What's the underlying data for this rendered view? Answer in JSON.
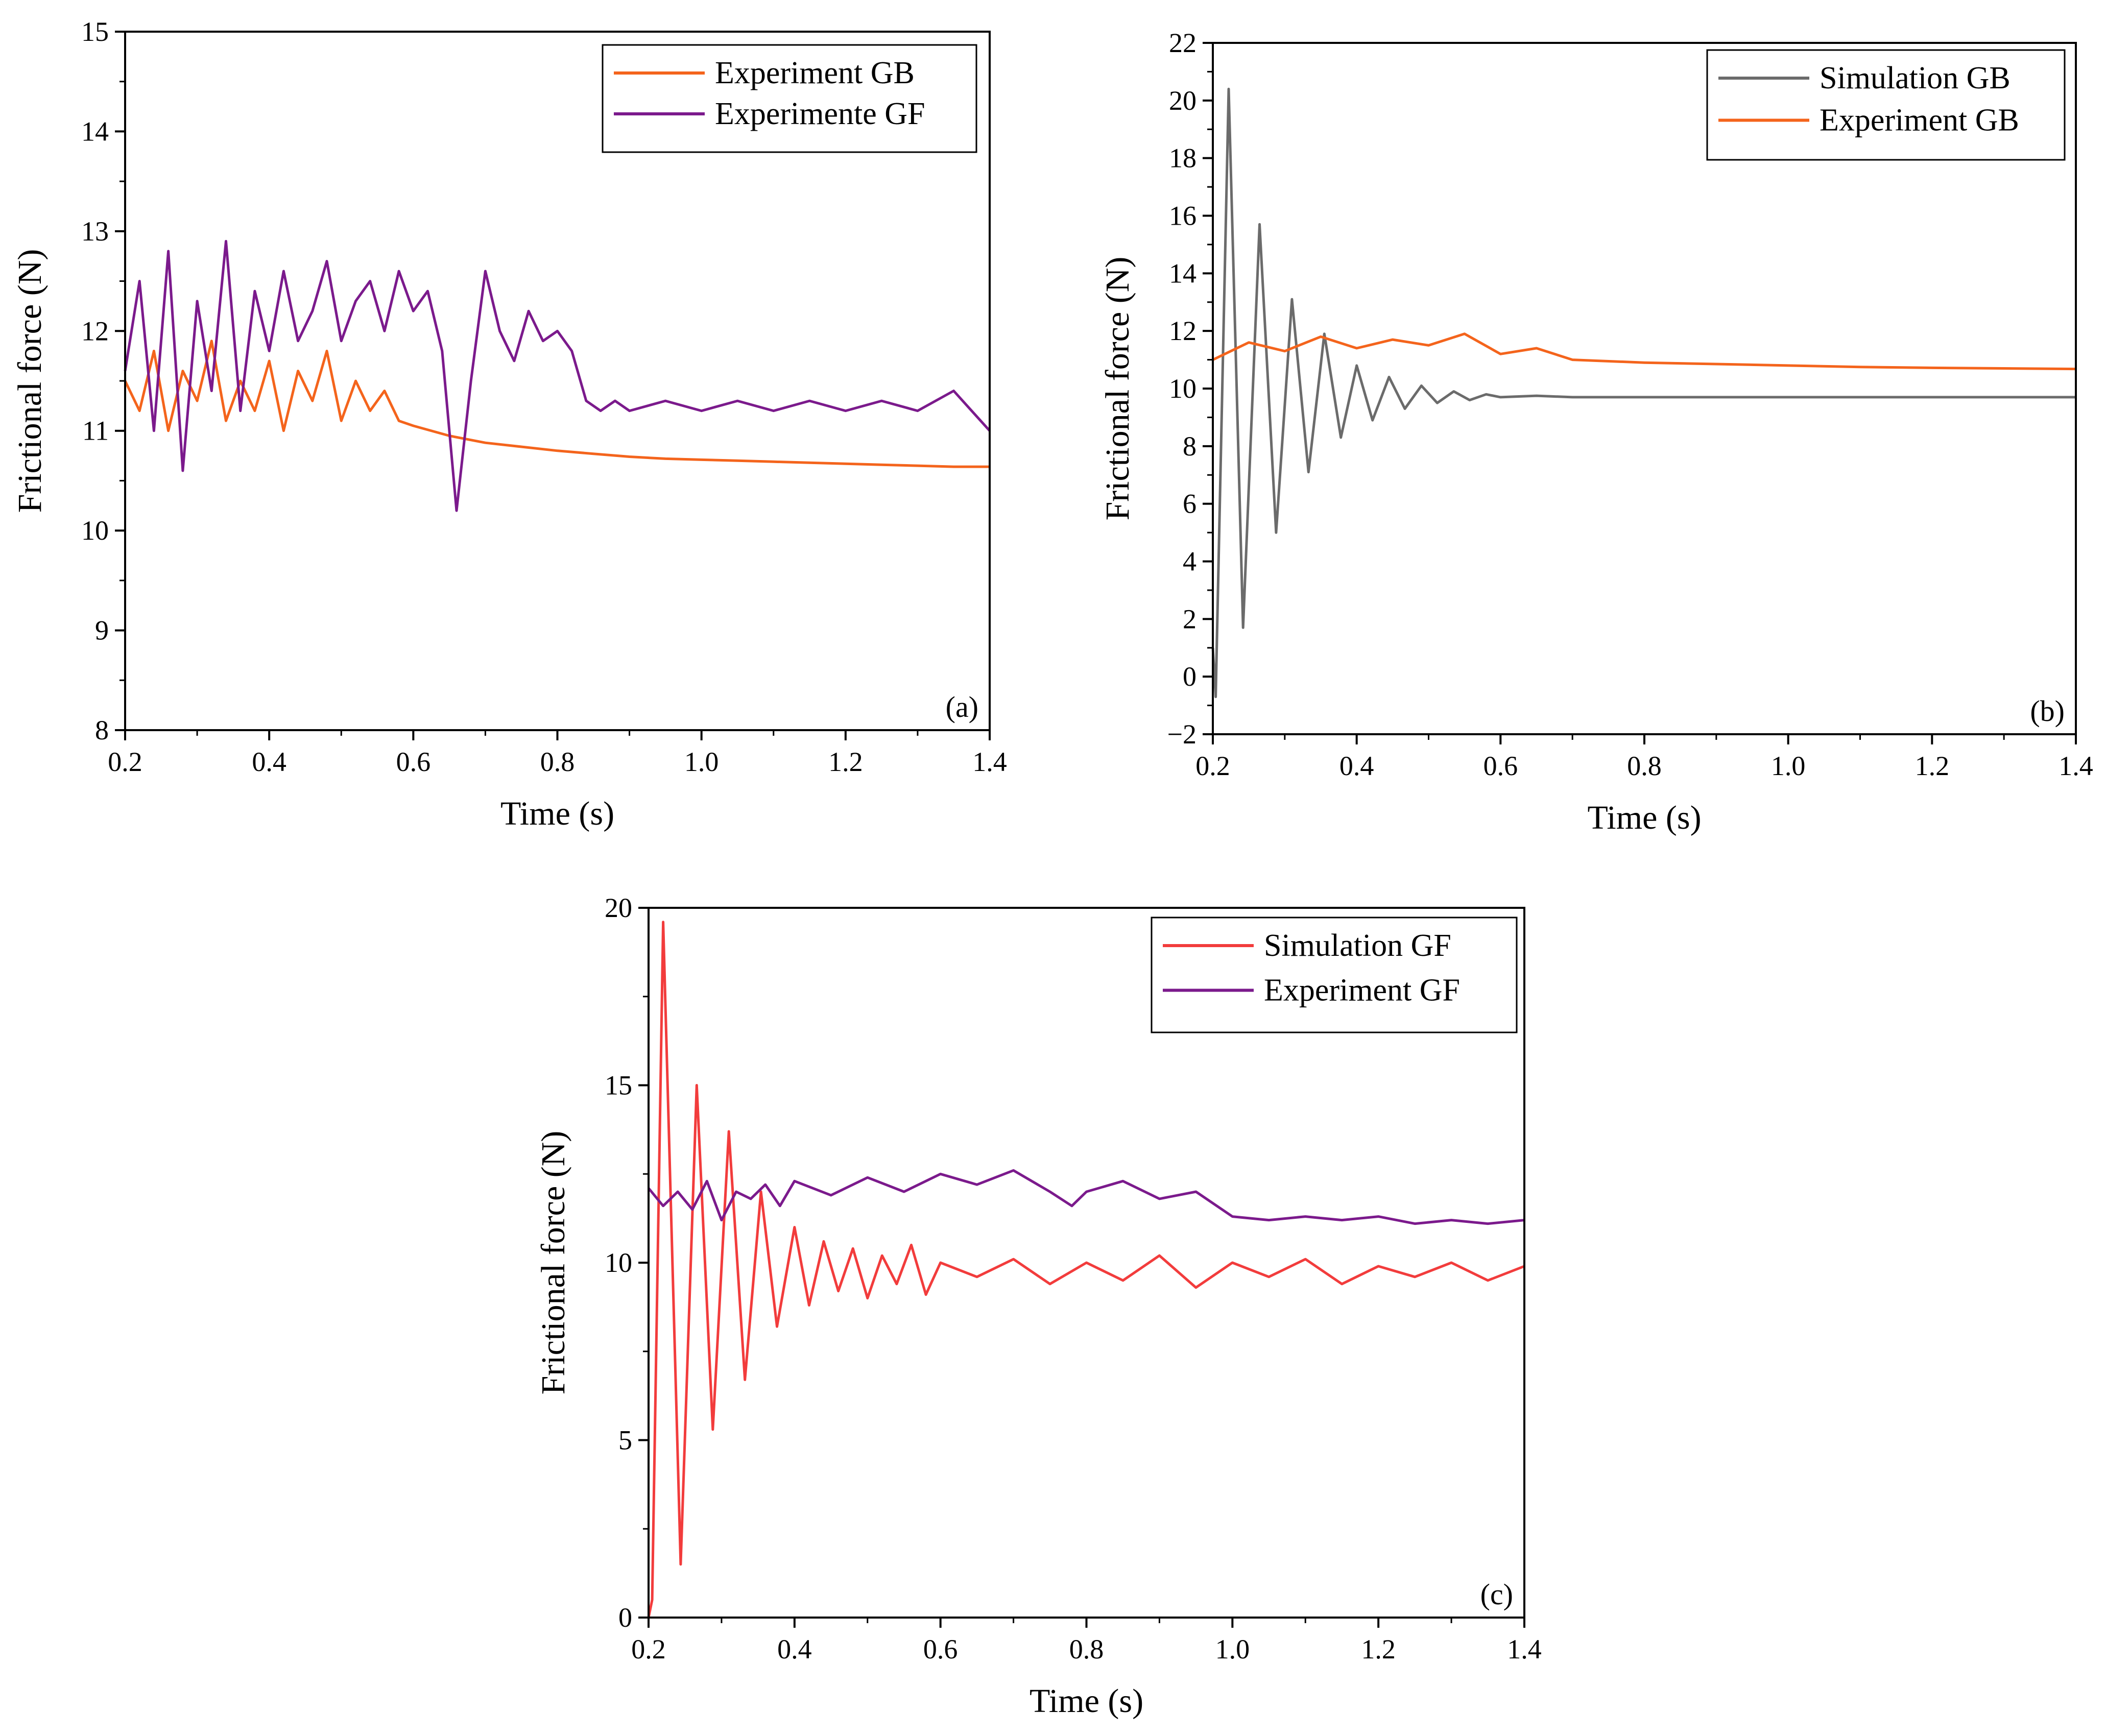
{
  "chart_data": [
    {
      "type": "line",
      "panel_label": "(a)",
      "xlabel": "Time (s)",
      "ylabel": "Frictional force (N)",
      "xlim": [
        0.2,
        1.4
      ],
      "ylim": [
        8,
        15
      ],
      "xticks": [
        "0.2",
        "0.4",
        "0.6",
        "0.8",
        "1.0",
        "1.2",
        "1.4"
      ],
      "yticks": [
        "8",
        "9",
        "10",
        "11",
        "12",
        "13",
        "14",
        "15"
      ],
      "legend_position": "top-right",
      "series": [
        {
          "name": "Experiment GB",
          "color": "#f4641c",
          "x": [
            0.2,
            0.22,
            0.24,
            0.26,
            0.28,
            0.3,
            0.32,
            0.34,
            0.36,
            0.38,
            0.4,
            0.42,
            0.44,
            0.46,
            0.48,
            0.5,
            0.52,
            0.54,
            0.56,
            0.58,
            0.6,
            0.65,
            0.7,
            0.75,
            0.8,
            0.85,
            0.9,
            0.95,
            1.0,
            1.05,
            1.1,
            1.15,
            1.2,
            1.25,
            1.3,
            1.35,
            1.4
          ],
          "values": [
            11.5,
            11.2,
            11.8,
            11.0,
            11.6,
            11.3,
            11.9,
            11.1,
            11.5,
            11.2,
            11.7,
            11.0,
            11.6,
            11.3,
            11.8,
            11.1,
            11.5,
            11.2,
            11.4,
            11.1,
            11.05,
            10.95,
            10.88,
            10.84,
            10.8,
            10.77,
            10.74,
            10.72,
            10.71,
            10.7,
            10.69,
            10.68,
            10.67,
            10.66,
            10.65,
            10.64,
            10.64
          ]
        },
        {
          "name": "Experimente GF",
          "color": "#7b1a8c",
          "x": [
            0.2,
            0.22,
            0.24,
            0.26,
            0.28,
            0.3,
            0.32,
            0.34,
            0.36,
            0.38,
            0.4,
            0.42,
            0.44,
            0.46,
            0.48,
            0.5,
            0.52,
            0.54,
            0.56,
            0.58,
            0.6,
            0.62,
            0.64,
            0.66,
            0.68,
            0.7,
            0.72,
            0.74,
            0.76,
            0.78,
            0.8,
            0.82,
            0.84,
            0.86,
            0.88,
            0.9,
            0.95,
            1.0,
            1.05,
            1.1,
            1.15,
            1.2,
            1.25,
            1.3,
            1.35,
            1.4
          ],
          "values": [
            11.6,
            12.5,
            11.0,
            12.8,
            10.6,
            12.3,
            11.4,
            12.9,
            11.2,
            12.4,
            11.8,
            12.6,
            11.9,
            12.2,
            12.7,
            11.9,
            12.3,
            12.5,
            12.0,
            12.6,
            12.2,
            12.4,
            11.8,
            10.2,
            11.5,
            12.6,
            12.0,
            11.7,
            12.2,
            11.9,
            12.0,
            11.8,
            11.3,
            11.2,
            11.3,
            11.2,
            11.3,
            11.2,
            11.3,
            11.2,
            11.3,
            11.2,
            11.3,
            11.2,
            11.4,
            11.0
          ]
        }
      ]
    },
    {
      "type": "line",
      "panel_label": "(b)",
      "xlabel": "Time (s)",
      "ylabel": "Frictional force (N)",
      "xlim": [
        0.2,
        1.4
      ],
      "ylim": [
        -2,
        22
      ],
      "xticks": [
        "0.2",
        "0.4",
        "0.6",
        "0.8",
        "1.0",
        "1.2",
        "1.4"
      ],
      "yticks": [
        "−2",
        "0",
        "2",
        "4",
        "6",
        "8",
        "10",
        "12",
        "14",
        "16",
        "18",
        "20",
        "22"
      ],
      "legend_position": "top-right",
      "series": [
        {
          "name": "Simulation GB",
          "color": "#6b6b6b",
          "x": [
            0.2,
            0.204,
            0.222,
            0.242,
            0.265,
            0.288,
            0.31,
            0.333,
            0.355,
            0.378,
            0.4,
            0.422,
            0.445,
            0.467,
            0.49,
            0.512,
            0.535,
            0.557,
            0.58,
            0.6,
            0.65,
            0.7,
            0.8,
            0.9,
            1.0,
            1.2,
            1.4
          ],
          "values": [
            1.0,
            -0.7,
            20.4,
            1.7,
            15.7,
            5.0,
            13.1,
            7.1,
            11.9,
            8.3,
            10.8,
            8.9,
            10.4,
            9.3,
            10.1,
            9.5,
            9.9,
            9.6,
            9.8,
            9.7,
            9.75,
            9.7,
            9.7,
            9.7,
            9.7,
            9.7,
            9.7
          ]
        },
        {
          "name": "Experiment GB",
          "color": "#f4641c",
          "x": [
            0.2,
            0.25,
            0.3,
            0.35,
            0.4,
            0.45,
            0.5,
            0.55,
            0.6,
            0.65,
            0.7,
            0.8,
            0.9,
            1.0,
            1.1,
            1.2,
            1.3,
            1.4
          ],
          "values": [
            11.0,
            11.6,
            11.3,
            11.8,
            11.4,
            11.7,
            11.5,
            11.9,
            11.2,
            11.4,
            11.0,
            10.9,
            10.85,
            10.8,
            10.75,
            10.72,
            10.7,
            10.68
          ]
        }
      ]
    },
    {
      "type": "line",
      "panel_label": "(c)",
      "xlabel": "Time (s)",
      "ylabel": "Frictional force (N)",
      "xlim": [
        0.2,
        1.4
      ],
      "ylim": [
        0,
        20
      ],
      "xticks": [
        "0.2",
        "0.4",
        "0.6",
        "0.8",
        "1.0",
        "1.2",
        "1.4"
      ],
      "yticks": [
        "0",
        "5",
        "10",
        "15",
        "20"
      ],
      "legend_position": "top-right",
      "series": [
        {
          "name": "Simulation GF",
          "color": "#f23c3c",
          "x": [
            0.2,
            0.205,
            0.22,
            0.244,
            0.266,
            0.288,
            0.31,
            0.332,
            0.354,
            0.376,
            0.4,
            0.42,
            0.44,
            0.46,
            0.48,
            0.5,
            0.52,
            0.54,
            0.56,
            0.58,
            0.6,
            0.65,
            0.7,
            0.75,
            0.8,
            0.85,
            0.9,
            0.95,
            1.0,
            1.05,
            1.1,
            1.15,
            1.2,
            1.25,
            1.3,
            1.35,
            1.4
          ],
          "values": [
            0.0,
            0.5,
            19.6,
            1.5,
            15.0,
            5.3,
            13.7,
            6.7,
            12.0,
            8.2,
            11.0,
            8.8,
            10.6,
            9.2,
            10.4,
            9.0,
            10.2,
            9.4,
            10.5,
            9.1,
            10.0,
            9.6,
            10.1,
            9.4,
            10.0,
            9.5,
            10.2,
            9.3,
            10.0,
            9.6,
            10.1,
            9.4,
            9.9,
            9.6,
            10.0,
            9.5,
            9.9
          ]
        },
        {
          "name": "Experiment GF",
          "color": "#7b1a8c",
          "x": [
            0.2,
            0.22,
            0.24,
            0.26,
            0.28,
            0.3,
            0.32,
            0.34,
            0.36,
            0.38,
            0.4,
            0.45,
            0.5,
            0.55,
            0.6,
            0.65,
            0.7,
            0.75,
            0.78,
            0.8,
            0.85,
            0.9,
            0.95,
            1.0,
            1.05,
            1.1,
            1.15,
            1.2,
            1.25,
            1.3,
            1.35,
            1.4
          ],
          "values": [
            12.1,
            11.6,
            12.0,
            11.5,
            12.3,
            11.2,
            12.0,
            11.8,
            12.2,
            11.6,
            12.3,
            11.9,
            12.4,
            12.0,
            12.5,
            12.2,
            12.6,
            12.0,
            11.6,
            12.0,
            12.3,
            11.8,
            12.0,
            11.3,
            11.2,
            11.3,
            11.2,
            11.3,
            11.1,
            11.2,
            11.1,
            11.2
          ]
        }
      ]
    }
  ]
}
